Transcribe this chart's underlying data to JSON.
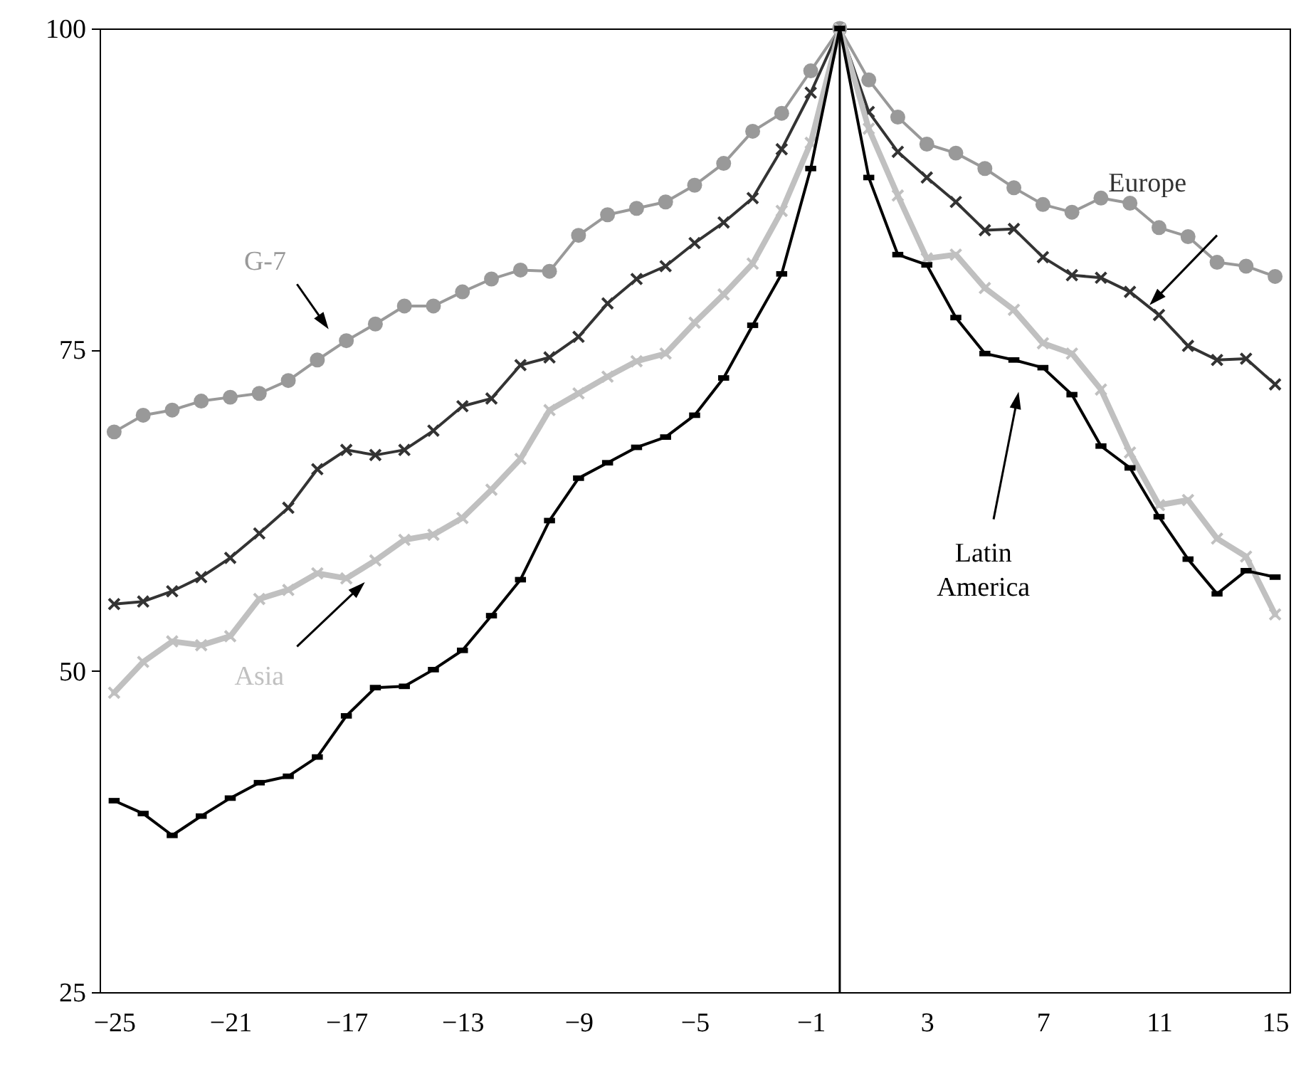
{
  "chart_data": {
    "type": "line",
    "x": [
      -25,
      -24,
      -23,
      -22,
      -21,
      -20,
      -19,
      -18,
      -17,
      -16,
      -15,
      -14,
      -13,
      -12,
      -11,
      -10,
      -9,
      -8,
      -7,
      -6,
      -5,
      -4,
      -3,
      -2,
      -1,
      0,
      1,
      2,
      3,
      4,
      5,
      6,
      7,
      8,
      9,
      10,
      11,
      12,
      13,
      14,
      15
    ],
    "xlim": [
      -25.5,
      15.5
    ],
    "xticks": [
      -25,
      -21,
      -17,
      -13,
      -9,
      -5,
      -1,
      3,
      7,
      11,
      15
    ],
    "ylim": [
      25,
      100
    ],
    "yticks": [
      25,
      50,
      75,
      100
    ],
    "grid": false,
    "ref_lines": [
      {
        "axis": "x",
        "value": 0,
        "color": "#000000"
      }
    ],
    "series": [
      {
        "name": "G-7",
        "color": "#999999",
        "marker": "circle",
        "values": [
          68.6,
          69.9,
          70.3,
          71.0,
          71.3,
          71.6,
          72.6,
          74.2,
          75.7,
          77.0,
          78.4,
          78.4,
          79.5,
          80.5,
          81.2,
          81.1,
          83.9,
          85.5,
          86.0,
          86.5,
          87.8,
          89.5,
          92.0,
          93.4,
          96.7,
          100,
          96.0,
          93.1,
          91.0,
          90.3,
          89.1,
          87.6,
          86.3,
          85.7,
          86.8,
          86.4,
          84.5,
          83.8,
          81.8,
          81.5,
          80.7
        ]
      },
      {
        "name": "Europe",
        "color": "#333333",
        "marker": "cross",
        "values": [
          55.2,
          55.4,
          56.2,
          57.3,
          58.8,
          60.7,
          62.7,
          65.7,
          67.2,
          66.8,
          67.2,
          68.7,
          70.6,
          71.2,
          73.8,
          74.4,
          76.0,
          78.6,
          80.5,
          81.5,
          83.3,
          84.9,
          86.8,
          90.6,
          95.0,
          100,
          93.5,
          90.4,
          88.4,
          86.5,
          84.3,
          84.4,
          82.2,
          80.8,
          80.6,
          79.5,
          77.7,
          75.3,
          74.2,
          74.3,
          72.3
        ]
      },
      {
        "name": "Asia",
        "color": "#c0c0c0",
        "marker": "cross",
        "values": [
          48.3,
          50.7,
          52.3,
          52.0,
          52.7,
          55.6,
          56.3,
          57.6,
          57.2,
          58.6,
          60.2,
          60.6,
          61.9,
          64.1,
          66.5,
          70.3,
          71.6,
          72.9,
          74.1,
          74.7,
          77.1,
          79.3,
          81.7,
          85.8,
          91.1,
          100,
          92.2,
          87.0,
          82.1,
          82.4,
          79.8,
          78.1,
          75.5,
          74.7,
          71.9,
          67.0,
          62.9,
          63.3,
          60.3,
          58.9,
          54.4
        ]
      },
      {
        "name": "Latin America",
        "color": "#000000",
        "marker": "square",
        "values": [
          39.9,
          38.9,
          37.2,
          38.7,
          40.1,
          41.3,
          41.8,
          43.3,
          46.5,
          48.7,
          48.8,
          50.1,
          51.6,
          54.3,
          57.1,
          61.7,
          65.0,
          66.2,
          67.4,
          68.2,
          69.9,
          72.8,
          76.9,
          80.9,
          89.1,
          100,
          88.4,
          82.4,
          81.6,
          77.5,
          74.7,
          74.2,
          73.6,
          71.5,
          67.5,
          65.8,
          62.0,
          58.7,
          56.0,
          57.8,
          57.3
        ]
      }
    ]
  }
}
